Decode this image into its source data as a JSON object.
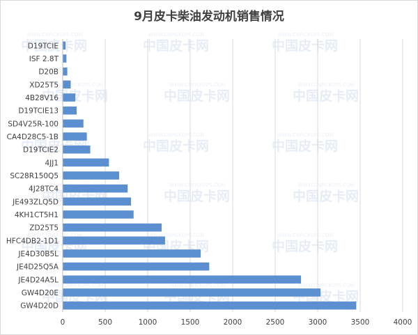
{
  "chart_data": {
    "type": "bar",
    "orientation": "horizontal",
    "title": "9月皮卡柴油发动机销售情况",
    "xlabel": "",
    "ylabel": "",
    "xlim": [
      0,
      4000
    ],
    "x_ticks": [
      0,
      500,
      1000,
      1500,
      2000,
      2500,
      3000,
      3500,
      4000
    ],
    "grid": "vertical",
    "bar_color": "#5b8fd0",
    "categories": [
      "D19TCIE",
      "ISF 2.8T",
      "D20B",
      "XD25T5",
      "4B28V16",
      "D19TCIE13",
      "SD4V25R-100",
      "CA4D28C5-1B",
      "D19TCIE2",
      "4JJ1",
      "SC28R150Q5",
      "4J28TC4",
      "JE493ZLQ5D",
      "4KH1CT5H1",
      "ZD25T5",
      "HFC4DB2-1D1",
      "JE4D30B5L",
      "JE4D25Q5A",
      "JE4D24A5L",
      "GW4D20E",
      "GW4D20D"
    ],
    "values": [
      30,
      40,
      50,
      90,
      145,
      160,
      240,
      280,
      320,
      540,
      660,
      760,
      800,
      830,
      1160,
      1200,
      1620,
      1720,
      2800,
      3030,
      3450
    ]
  },
  "watermark": {
    "cn": "中国皮卡网",
    "en": "WWW.CNPICKUPS.COM"
  }
}
